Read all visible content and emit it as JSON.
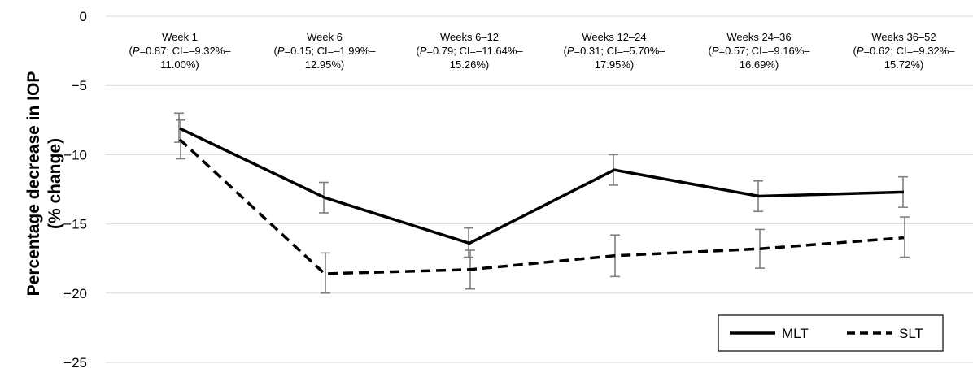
{
  "chart_data": {
    "type": "line",
    "ylabel": "Percentage decrease in IOP\n(% change)",
    "xlabel": "",
    "title": "",
    "ylim": [
      -25,
      0
    ],
    "yticks": [
      0,
      -5,
      -10,
      -15,
      -20,
      -25
    ],
    "yticklabels": [
      "0",
      "−5",
      "−10",
      "−15",
      "−20",
      "−25"
    ],
    "grid": true,
    "legend_position": "bottom-right",
    "categories": [
      "Week 1",
      "Week 6",
      "Weeks 6–12",
      "Weeks 12–24",
      "Weeks 24–36",
      "Weeks 36–52"
    ],
    "annotations": [
      {
        "line1": "Week 1",
        "p": "=0.87; CI=–9.32%–",
        "line3": "11.00%)"
      },
      {
        "line1": "Week 6",
        "p": "=0.15; CI=–1.99%–",
        "line3": "12.95%)"
      },
      {
        "line1": "Weeks 6–12",
        "p": "=0.79; CI=–11.64%–",
        "line3": "15.26%)"
      },
      {
        "line1": "Weeks 12–24",
        "p": "=0.31; CI=–5.70%–",
        "line3": "17.95%)"
      },
      {
        "line1": "Weeks 24–36",
        "p": "=0.57; CI=–9.16%–",
        "line3": "16.69%)"
      },
      {
        "line1": "Weeks 36–52",
        "p": "=0.62; CI=–9.32%–",
        "line3": "15.72%)"
      }
    ],
    "series": [
      {
        "name": "MLT",
        "style": "solid",
        "color": "#000000",
        "values": [
          -8.1,
          -13.1,
          -16.4,
          -11.1,
          -13.0,
          -12.7
        ],
        "err_low": [
          -9.1,
          -14.2,
          -17.4,
          -12.2,
          -14.1,
          -13.8
        ],
        "err_high": [
          -7.0,
          -12.0,
          -15.3,
          -10.0,
          -11.9,
          -11.6
        ]
      },
      {
        "name": "SLT",
        "style": "dashed",
        "color": "#000000",
        "values": [
          -8.9,
          -18.6,
          -18.3,
          -17.3,
          -16.8,
          -16.0
        ],
        "err_low": [
          -10.3,
          -20.0,
          -19.7,
          -18.8,
          -18.2,
          -17.4
        ],
        "err_high": [
          -7.5,
          -17.1,
          -16.9,
          -15.8,
          -15.4,
          -14.5
        ]
      }
    ],
    "colors": {
      "gridline": "#d9d9d9",
      "errorbar": "#7f7f7f",
      "line": "#000000"
    }
  }
}
